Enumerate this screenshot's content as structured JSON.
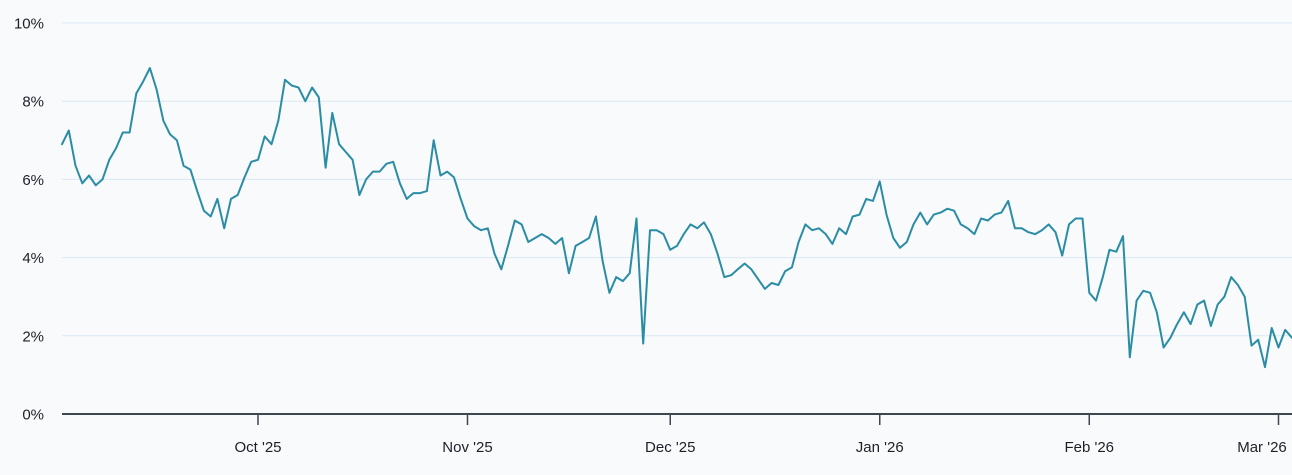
{
  "chart_data": {
    "type": "line",
    "title": "",
    "xlabel": "",
    "ylabel": "",
    "y_unit": "%",
    "ylim": [
      0,
      10
    ],
    "grid": true,
    "legend_position": "none",
    "line_color": "#2b8ca6",
    "background_color": "#f8fafb",
    "gridline_color": "#dbe8f4",
    "axis_color": "#3f4650",
    "label_color": "#1c2128",
    "y_ticks": [
      {
        "value": 0,
        "label": "0%"
      },
      {
        "value": 2,
        "label": "2%"
      },
      {
        "value": 4,
        "label": "4%"
      },
      {
        "value": 6,
        "label": "6%"
      },
      {
        "value": 8,
        "label": "8%"
      },
      {
        "value": 10,
        "label": "10%"
      }
    ],
    "x_ticks": [
      {
        "day_index": 29,
        "label": "Oct '25"
      },
      {
        "day_index": 60,
        "label": "Nov '25"
      },
      {
        "day_index": 90,
        "label": "Dec '25"
      },
      {
        "day_index": 121,
        "label": "Jan '26"
      },
      {
        "day_index": 152,
        "label": "Feb '26"
      },
      {
        "day_index": 180,
        "label": "Mar '26"
      }
    ],
    "x_note": "daily series, early September 2025 through early March 2026",
    "values": [
      6.9,
      7.25,
      6.35,
      5.9,
      6.1,
      5.85,
      6.0,
      6.5,
      6.8,
      7.2,
      7.2,
      8.2,
      8.5,
      8.85,
      8.3,
      7.5,
      7.15,
      7.0,
      6.35,
      6.25,
      5.7,
      5.2,
      5.05,
      5.5,
      4.75,
      5.5,
      5.6,
      6.05,
      6.45,
      6.5,
      7.1,
      6.9,
      7.5,
      8.55,
      8.4,
      8.35,
      8.0,
      8.35,
      8.1,
      6.3,
      7.7,
      6.9,
      6.7,
      6.5,
      5.6,
      6.0,
      6.2,
      6.2,
      6.4,
      6.45,
      5.9,
      5.5,
      5.65,
      5.65,
      5.7,
      7.0,
      6.1,
      6.2,
      6.05,
      5.5,
      5.0,
      4.8,
      4.7,
      4.75,
      4.1,
      3.7,
      4.3,
      4.95,
      4.85,
      4.4,
      4.5,
      4.6,
      4.5,
      4.35,
      4.5,
      3.6,
      4.3,
      4.4,
      4.5,
      5.05,
      3.9,
      3.1,
      3.5,
      3.4,
      3.6,
      5.0,
      1.8,
      4.7,
      4.7,
      4.6,
      4.2,
      4.3,
      4.6,
      4.85,
      4.75,
      4.9,
      4.6,
      4.1,
      3.5,
      3.55,
      3.7,
      3.85,
      3.7,
      3.45,
      3.2,
      3.35,
      3.3,
      3.65,
      3.75,
      4.4,
      4.85,
      4.7,
      4.75,
      4.6,
      4.35,
      4.75,
      4.6,
      5.05,
      5.1,
      5.5,
      5.45,
      5.95,
      5.1,
      4.5,
      4.25,
      4.4,
      4.85,
      5.15,
      4.85,
      5.1,
      5.15,
      5.25,
      5.2,
      4.85,
      4.75,
      4.6,
      5.0,
      4.95,
      5.1,
      5.15,
      5.45,
      4.75,
      4.75,
      4.65,
      4.6,
      4.7,
      4.85,
      4.65,
      4.05,
      4.85,
      5.0,
      5.0,
      3.1,
      2.9,
      3.5,
      4.2,
      4.15,
      4.55,
      1.45,
      2.9,
      3.15,
      3.1,
      2.6,
      1.7,
      1.95,
      2.3,
      2.6,
      2.3,
      2.8,
      2.9,
      2.25,
      2.8,
      3.0,
      3.5,
      3.3,
      3.0,
      1.75,
      1.9,
      1.2,
      2.2,
      1.7,
      2.15,
      1.95
    ]
  }
}
